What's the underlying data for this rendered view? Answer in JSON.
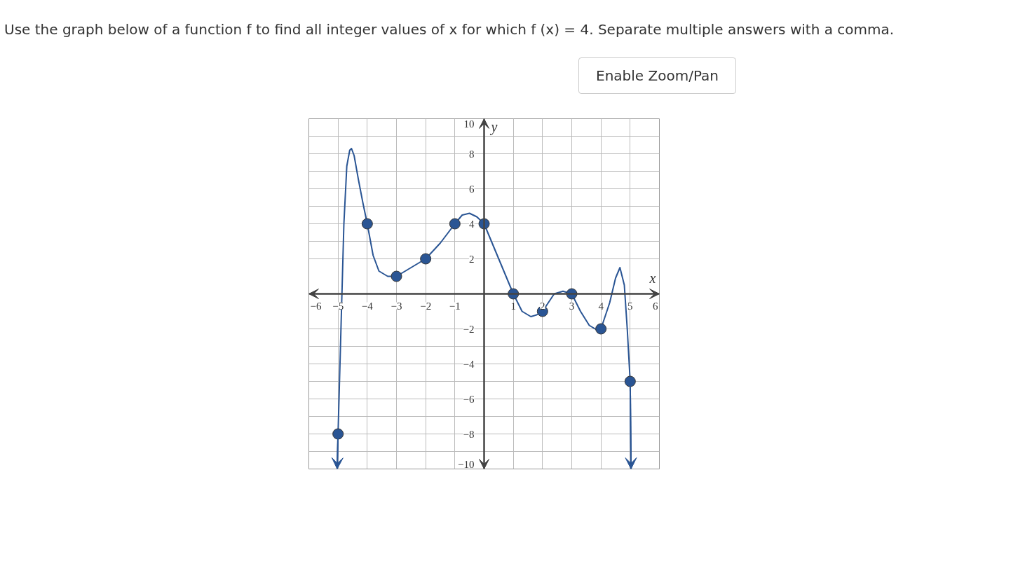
{
  "chart_data": {
    "type": "line",
    "title": "Use the graph below of a function f to find all integer values of x for which f (x) = 4. Separate multiple answers with a comma.",
    "annotations": [
      "Enable Zoom/Pan"
    ],
    "xlabel": "x",
    "ylabel": "y",
    "series": [
      {
        "marker": "none",
        "color": "#2a5594",
        "x": [
          -5.03,
          -5,
          -4.9,
          -4.8,
          -4.7,
          -4.6,
          -4.54,
          -4.45,
          -4.3,
          -4.15,
          -4,
          -3.8,
          -3.6,
          -3.3,
          -3,
          -2.5,
          -2,
          -1.5,
          -1,
          -0.75,
          -0.5,
          -0.25,
          0,
          0.5,
          1,
          1.3,
          1.6,
          1.8,
          2,
          2.4,
          2.7,
          3,
          3.3,
          3.6,
          3.9,
          4,
          4.3,
          4.5,
          4.65,
          4.8,
          4.9,
          5,
          5.03
        ],
        "values": [
          -10,
          -8,
          -2,
          4,
          7.3,
          8.2,
          8.3,
          7.9,
          6.5,
          5.2,
          4,
          2.2,
          1.3,
          1,
          1,
          1.5,
          2,
          2.9,
          4,
          4.5,
          4.6,
          4.4,
          4,
          2,
          0,
          -1,
          -1.3,
          -1.2,
          -1,
          0,
          0.15,
          0,
          -1,
          -1.8,
          -2.1,
          -2,
          -0.5,
          0.9,
          1.5,
          0.5,
          -2,
          -5,
          -10
        ]
      },
      {
        "type": "scatter",
        "marker": "circle",
        "color": "#2a5594",
        "x": [
          -5,
          -4,
          -3,
          -2,
          -1,
          0,
          1,
          2,
          3,
          4,
          5
        ],
        "values": [
          -8,
          4,
          1,
          2,
          4,
          4,
          0,
          -1,
          0,
          -2,
          -5
        ]
      }
    ],
    "xlim": [
      -6,
      6
    ],
    "ylim": [
      -10,
      10
    ],
    "xticks": [
      {
        "value": -6,
        "label": "−6"
      },
      {
        "value": -5,
        "label": "−5"
      },
      {
        "value": -4,
        "label": "−4"
      },
      {
        "value": -3,
        "label": "−3"
      },
      {
        "value": -2,
        "label": "−2"
      },
      {
        "value": -1,
        "label": "−1"
      },
      1,
      2,
      3,
      4,
      5,
      6
    ],
    "yticks": [
      {
        "value": -10,
        "label": "−10"
      },
      {
        "value": -8,
        "label": "−8"
      },
      {
        "value": -6,
        "label": "−6"
      },
      {
        "value": -4,
        "label": "−4"
      },
      {
        "value": -2,
        "label": "−2"
      },
      2,
      4,
      6,
      8,
      10
    ],
    "grid": true
  }
}
